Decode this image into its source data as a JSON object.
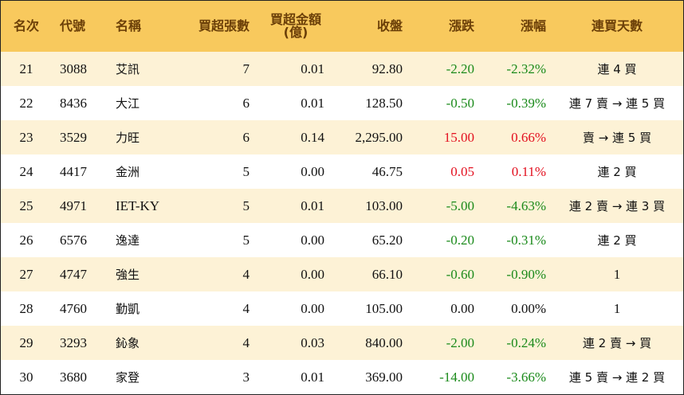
{
  "headers": {
    "rank": "名次",
    "code": "代號",
    "name": "名稱",
    "net_buy_lots": "買超張數",
    "net_buy_amount": "買超金額\n(億)",
    "close": "收盤",
    "change": "漲跌",
    "change_pct": "漲幅",
    "consecutive": "連買天數"
  },
  "rows": [
    {
      "rank": "21",
      "code": "3088",
      "name": "艾訊",
      "lots": "7",
      "amount": "0.01",
      "close": "92.80",
      "change": "-2.20",
      "pct": "-2.32%",
      "trend": "neg",
      "days": "連 4 買"
    },
    {
      "rank": "22",
      "code": "8436",
      "name": "大江",
      "lots": "6",
      "amount": "0.01",
      "close": "128.50",
      "change": "-0.50",
      "pct": "-0.39%",
      "trend": "neg",
      "days": "連 7 賣 → 連 5 買"
    },
    {
      "rank": "23",
      "code": "3529",
      "name": "力旺",
      "lots": "6",
      "amount": "0.14",
      "close": "2,295.00",
      "change": "15.00",
      "pct": "0.66%",
      "trend": "pos",
      "days": "賣 → 連 5 買"
    },
    {
      "rank": "24",
      "code": "4417",
      "name": "金洲",
      "lots": "5",
      "amount": "0.00",
      "close": "46.75",
      "change": "0.05",
      "pct": "0.11%",
      "trend": "pos",
      "days": "連 2 買"
    },
    {
      "rank": "25",
      "code": "4971",
      "name": "IET-KY",
      "lots": "5",
      "amount": "0.01",
      "close": "103.00",
      "change": "-5.00",
      "pct": "-4.63%",
      "trend": "neg",
      "days": "連 2 賣 → 連 3 買"
    },
    {
      "rank": "26",
      "code": "6576",
      "name": "逸達",
      "lots": "5",
      "amount": "0.00",
      "close": "65.20",
      "change": "-0.20",
      "pct": "-0.31%",
      "trend": "neg",
      "days": "連 2 買"
    },
    {
      "rank": "27",
      "code": "4747",
      "name": "強生",
      "lots": "4",
      "amount": "0.00",
      "close": "66.10",
      "change": "-0.60",
      "pct": "-0.90%",
      "trend": "neg",
      "days": "1"
    },
    {
      "rank": "28",
      "code": "4760",
      "name": "勤凱",
      "lots": "4",
      "amount": "0.00",
      "close": "105.00",
      "change": "0.00",
      "pct": "0.00%",
      "trend": "zero",
      "days": "1"
    },
    {
      "rank": "29",
      "code": "3293",
      "name": "鈊象",
      "lots": "4",
      "amount": "0.03",
      "close": "840.00",
      "change": "-2.00",
      "pct": "-0.24%",
      "trend": "neg",
      "days": "連 2 賣 → 買"
    },
    {
      "rank": "30",
      "code": "3680",
      "name": "家登",
      "lots": "3",
      "amount": "0.01",
      "close": "369.00",
      "change": "-14.00",
      "pct": "-3.66%",
      "trend": "neg",
      "days": "連 5 賣 → 連 2 買"
    }
  ],
  "colors": {
    "header_bg": "#f8c95d",
    "header_text": "#6b3f08",
    "stripe": "#fdf2d6",
    "up": "#e3101f",
    "down": "#1a8a1a"
  }
}
